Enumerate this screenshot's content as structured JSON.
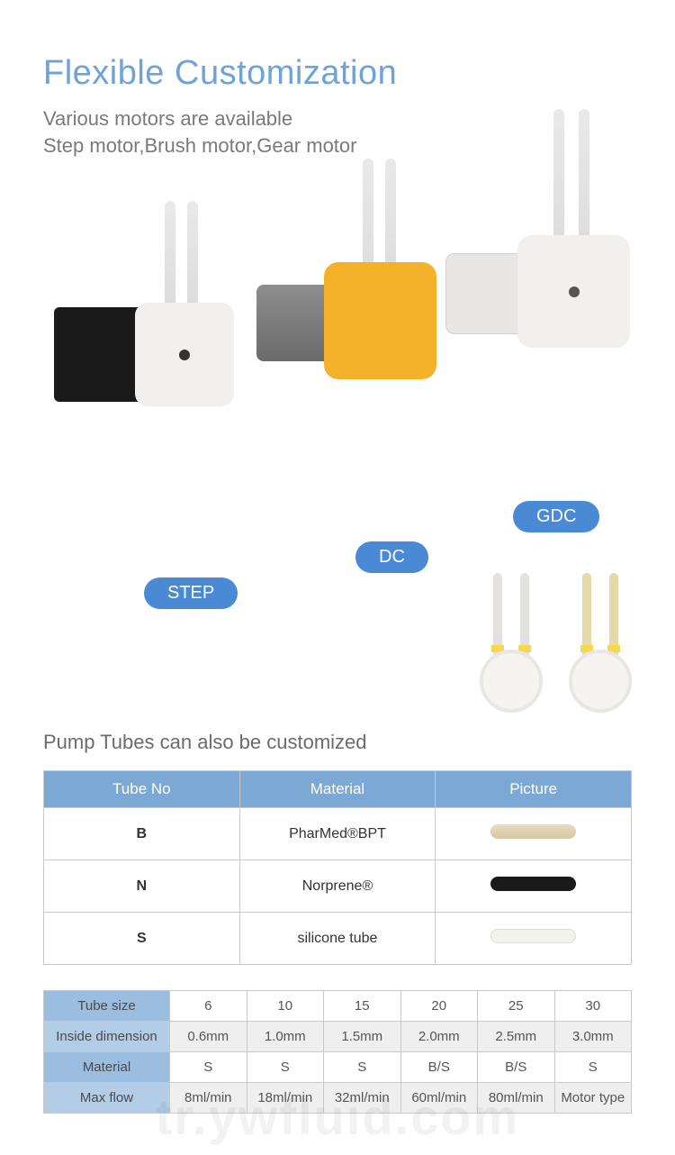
{
  "header": {
    "title": "Flexible Customization",
    "subtitle_line1": "Various motors are available",
    "subtitle_line2": "Step motor,Brush motor,Gear motor",
    "title_color": "#6ea3d8"
  },
  "motors": {
    "badges": {
      "step": "STEP",
      "dc": "DC",
      "gdc": "GDC"
    },
    "badge_color": "#4a8ad4"
  },
  "tubes_section": {
    "title": "Pump Tubes can also be customized"
  },
  "material_table": {
    "headers": [
      "Tube No",
      "Material",
      "Picture"
    ],
    "header_bg": "#7ca8d6",
    "rows": [
      {
        "tube_no": "B",
        "material": "PharMed®BPT",
        "pic_class": "pic-beige"
      },
      {
        "tube_no": "N",
        "material": "Norprene®",
        "pic_class": "pic-black"
      },
      {
        "tube_no": "S",
        "material": "silicone tube",
        "pic_class": "pic-white"
      }
    ]
  },
  "size_table": {
    "header_bg": "#9bbddf",
    "row_labels": [
      "Tube size",
      "Inside dimension",
      "Material",
      "Max flow"
    ],
    "columns": [
      "6",
      "10",
      "15",
      "20",
      "25",
      "30"
    ],
    "inside": [
      "0.6mm",
      "1.0mm",
      "1.5mm",
      "2.0mm",
      "2.5mm",
      "3.0mm"
    ],
    "material": [
      "S",
      "S",
      "S",
      "B/S",
      "B/S",
      "S"
    ],
    "maxflow": [
      "8ml/min",
      "18ml/min",
      "32ml/min",
      "60ml/min",
      "80ml/min",
      "Motor type"
    ]
  },
  "watermark": "tr.ywfluid.com"
}
